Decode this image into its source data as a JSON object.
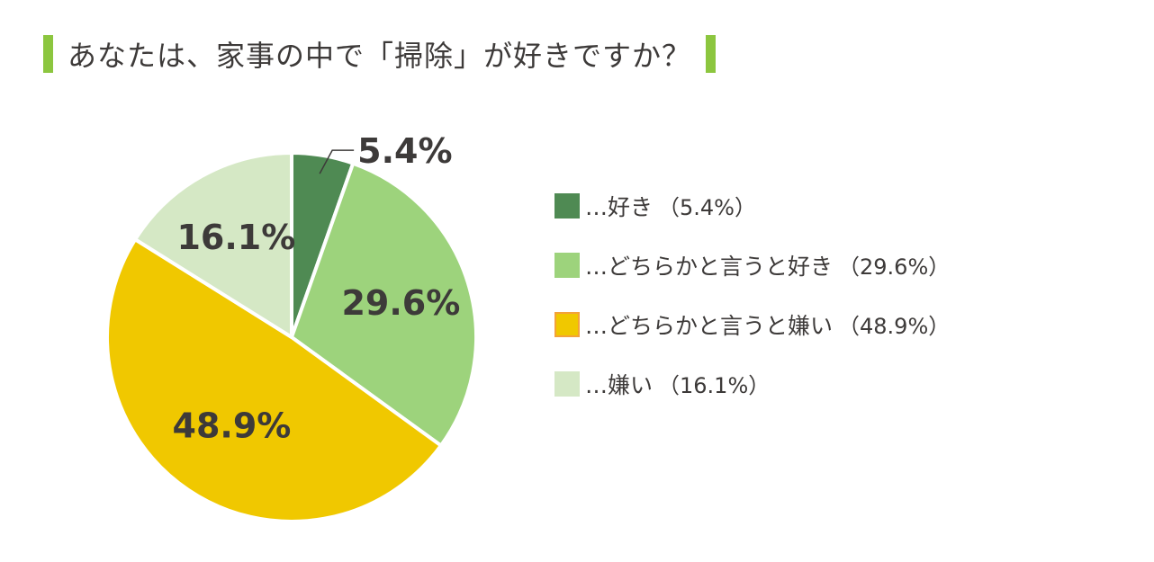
{
  "title": "あなたは、家事の中で「掃除」が好きですか？",
  "chart_data": {
    "type": "pie",
    "title": "あなたは、家事の中で「掃除」が好きですか？",
    "start": "12 o'clock",
    "direction": "clockwise",
    "slices": [
      {
        "label": "…好き",
        "value": 5.4,
        "display": "5.4%",
        "legend_pct": "（5.4%）",
        "color": "#4f8a53"
      },
      {
        "label": "…どちらかと言うと好き",
        "value": 29.6,
        "display": "29.6%",
        "legend_pct": "（29.6%）",
        "color": "#9dd37c"
      },
      {
        "label": "…どちらかと言うと嫌い",
        "value": 48.9,
        "display": "48.9%",
        "legend_pct": "（48.9%）",
        "color": "#f0c800"
      },
      {
        "label": "…嫌い",
        "value": 16.1,
        "display": "16.1%",
        "legend_pct": "（16.1%）",
        "color": "#d5e8c5"
      }
    ],
    "legend_placement": "right",
    "highlight_border_color": "#f3a23a"
  },
  "colors": {
    "accent": "#8cc63f",
    "text": "#3d3a39"
  }
}
